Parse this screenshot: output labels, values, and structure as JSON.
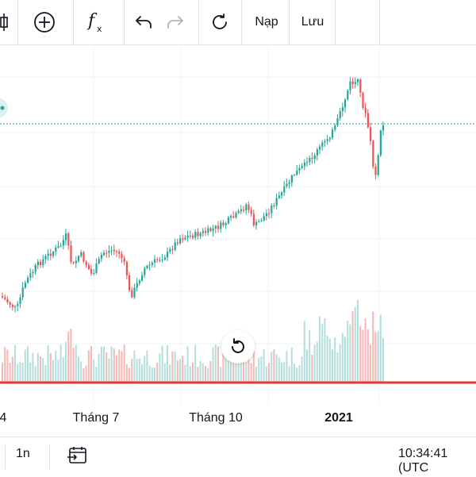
{
  "toolbar": {
    "icons": [
      "candlestick-icon",
      "add-circle-icon",
      "function-icon",
      "undo-icon",
      "redo-icon",
      "refresh-icon"
    ],
    "load_label": "Nạp",
    "save_label": "Lưu"
  },
  "time_axis": {
    "labels": [
      "4",
      "Tháng 7",
      "Tháng 10",
      "2021"
    ],
    "bold_label": "2021"
  },
  "bottom_bar": {
    "interval": "1n",
    "time": "10:34:41 (UTC"
  },
  "colors": {
    "up": "#26a69a",
    "down": "#ef5350",
    "up_volume": "#b2dfdb",
    "down_volume": "#f5b7b5",
    "last_price_line": "#26a69a",
    "red_line": "#e53935"
  },
  "chart_data": {
    "type": "candlestick",
    "x_labels": [
      "4",
      "Tháng 7",
      "Tháng 10",
      "2021"
    ],
    "grid": true,
    "volume": true,
    "last_price_line": true,
    "horizontal_red_line": true
  }
}
